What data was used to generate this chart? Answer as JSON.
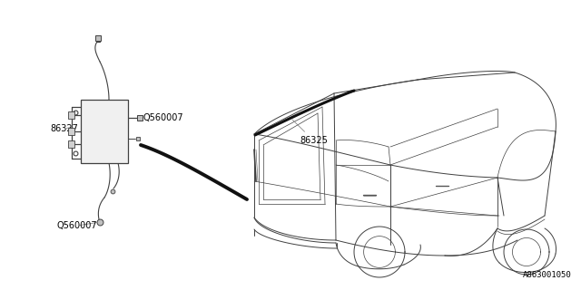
{
  "background_color": "#ffffff",
  "line_color": "#404040",
  "text_color": "#000000",
  "part_labels": {
    "part_num": "A863001050"
  },
  "font_size_labels": 7.0,
  "font_size_partnum": 6.5
}
